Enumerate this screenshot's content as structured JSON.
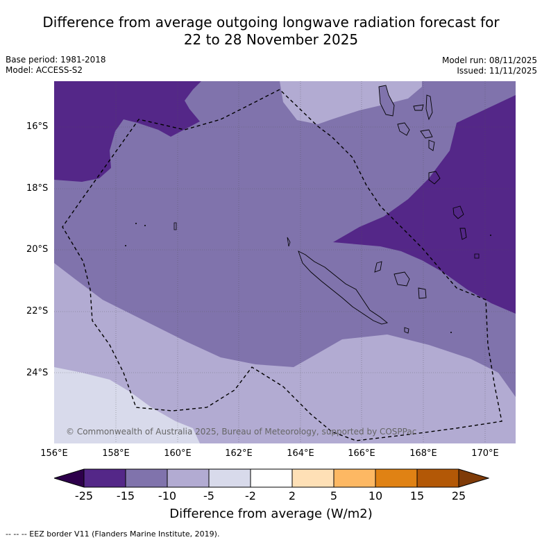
{
  "title_line1": "Difference from average outgoing longwave radiation forecast for",
  "title_line2": "22 to 28 November 2025",
  "base_period": "Base period: 1981-2018",
  "model": "Model: ACCESS-S2",
  "model_run": "Model run: 08/11/2025",
  "issued": "Issued: 11/11/2025",
  "lat_labels": [
    "16°S",
    "18°S",
    "20°S",
    "22°S",
    "24°S"
  ],
  "lon_labels": [
    "156°E",
    "158°E",
    "160°E",
    "162°E",
    "164°E",
    "166°E",
    "168°E",
    "170°E"
  ],
  "copyright": "© Commonwealth of Australia 2025, Bureau of Meteorology, supported by COSPPac",
  "colorbar": {
    "ticks": [
      "-25",
      "-15",
      "-10",
      "-5",
      "-2",
      "2",
      "5",
      "10",
      "15",
      "25"
    ],
    "colors": [
      "#2d004b",
      "#542788",
      "#8073ac",
      "#b2abd2",
      "#d8daeb",
      "#ffffff",
      "#fee0b6",
      "#fdb863",
      "#e08214",
      "#b35806",
      "#7f3b08"
    ],
    "label": "Difference from average (W/m2)"
  },
  "legend": "--  --  -- EEZ border V11 (Flanders Marine Institute, 2019)."
}
